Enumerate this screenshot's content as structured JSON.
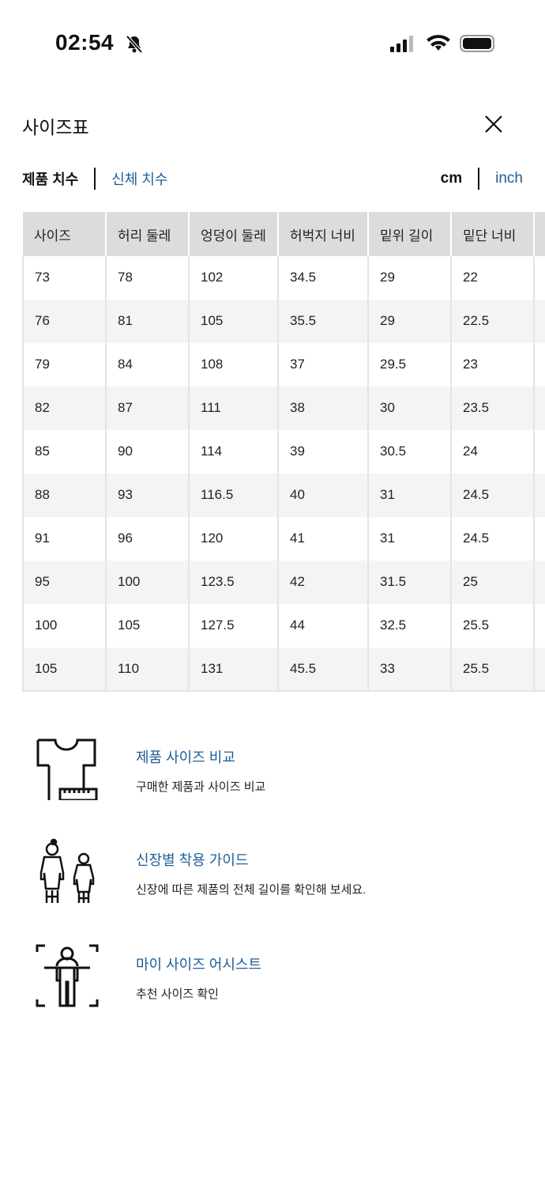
{
  "status_bar": {
    "time": "02:54",
    "icons": [
      "bell-slash-icon",
      "signal-icon",
      "wifi-icon",
      "battery-icon"
    ]
  },
  "header": {
    "title": "사이즈표",
    "close_icon": "close-icon"
  },
  "measure_tabs": [
    {
      "label": "제품 치수",
      "active": true
    },
    {
      "label": "신체 치수",
      "active": false
    }
  ],
  "units": [
    {
      "label": "cm",
      "active": true
    },
    {
      "label": "inch",
      "active": false
    }
  ],
  "table": {
    "headers": [
      "사이즈",
      "허리 둘레",
      "엉덩이 둘레",
      "허벅지 너비",
      "밑위 길이",
      "밑단 너비",
      ""
    ],
    "rows": [
      [
        "73",
        "78",
        "102",
        "34.5",
        "29",
        "22",
        ""
      ],
      [
        "76",
        "81",
        "105",
        "35.5",
        "29",
        "22.5",
        ""
      ],
      [
        "79",
        "84",
        "108",
        "37",
        "29.5",
        "23",
        ""
      ],
      [
        "82",
        "87",
        "111",
        "38",
        "30",
        "23.5",
        ""
      ],
      [
        "85",
        "90",
        "114",
        "39",
        "30.5",
        "24",
        ""
      ],
      [
        "88",
        "93",
        "116.5",
        "40",
        "31",
        "24.5",
        ""
      ],
      [
        "91",
        "96",
        "120",
        "41",
        "31",
        "24.5",
        ""
      ],
      [
        "95",
        "100",
        "123.5",
        "42",
        "31.5",
        "25",
        ""
      ],
      [
        "100",
        "105",
        "127.5",
        "44",
        "32.5",
        "25.5",
        ""
      ],
      [
        "105",
        "110",
        "131",
        "45.5",
        "33",
        "25.5",
        ""
      ]
    ]
  },
  "features": [
    {
      "title": "제품 사이즈 비교",
      "desc": "구매한 제품과 사이즈 비교",
      "icon": "shirt-ruler-icon"
    },
    {
      "title": "신장별 착용 가이드",
      "desc": "신장에 따른 제품의 전체 길이를 확인해 보세요.",
      "icon": "people-height-icon"
    },
    {
      "title": "마이 사이즈 어시스트",
      "desc": "추천 사이즈 확인",
      "icon": "body-scan-icon"
    }
  ],
  "colors": {
    "accent": "#1f5e98",
    "header_bg": "#dcdcdc",
    "stripe": "#f4f4f4"
  }
}
